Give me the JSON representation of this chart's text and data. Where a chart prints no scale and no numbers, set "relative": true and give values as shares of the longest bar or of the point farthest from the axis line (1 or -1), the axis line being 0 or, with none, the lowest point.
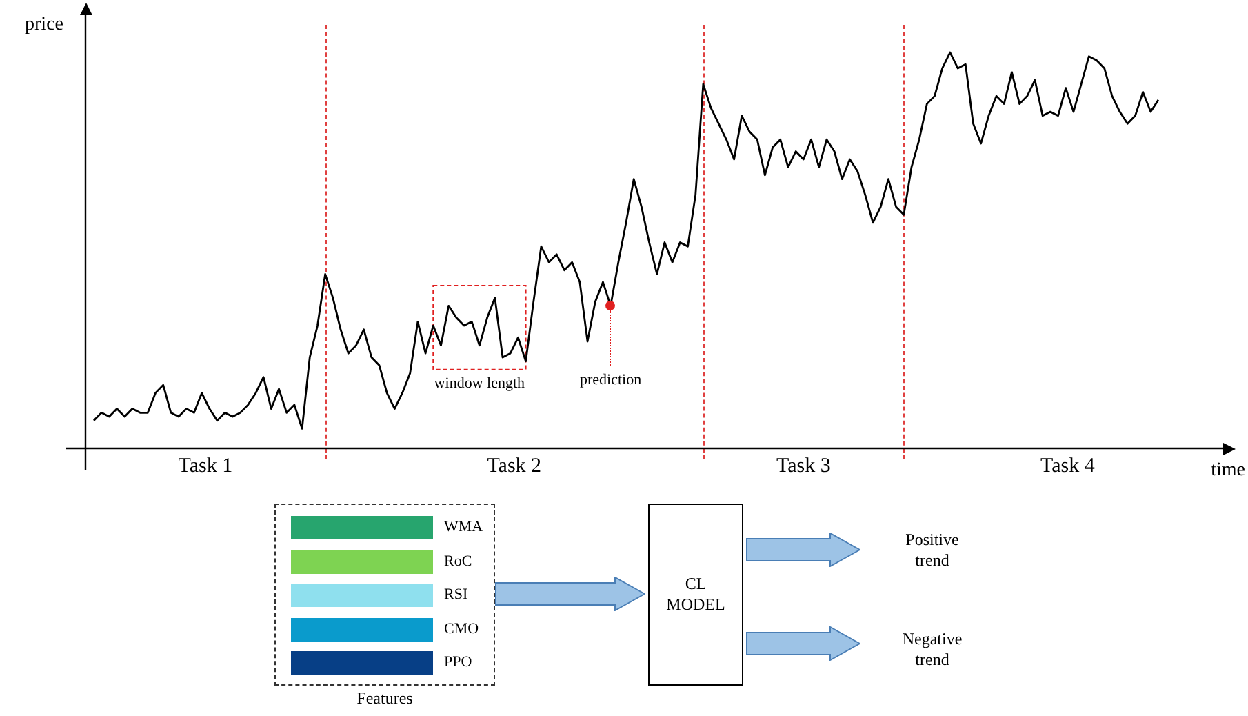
{
  "chart_data": {
    "type": "line",
    "relative": true,
    "xlabel": "time",
    "ylabel": "price",
    "legend": false,
    "marker": "none",
    "line_style": "solid",
    "categories": [
      null,
      null,
      null,
      null,
      null,
      null,
      null,
      null,
      null,
      null,
      null,
      null,
      null,
      null,
      null,
      null,
      null,
      null,
      null,
      null,
      null,
      null,
      null,
      null,
      null,
      null,
      null,
      null,
      null,
      null,
      null,
      null,
      null,
      null,
      null,
      null,
      null,
      null,
      null,
      null,
      null,
      null,
      null,
      null,
      null,
      null,
      null,
      null,
      null,
      null,
      null,
      null,
      null,
      null,
      null,
      null,
      null,
      null,
      null,
      null,
      null,
      null,
      null,
      null,
      null,
      null,
      null,
      null,
      null,
      null,
      null,
      null,
      null,
      null,
      null,
      null,
      null,
      null,
      null,
      null,
      null,
      null,
      null,
      null,
      null,
      null,
      null,
      null,
      null,
      null,
      null,
      null,
      null,
      null,
      null,
      null,
      null,
      null,
      null,
      null,
      null,
      null,
      null,
      null,
      null,
      null,
      null,
      null,
      null,
      null,
      null,
      null,
      null,
      null,
      null,
      null,
      null,
      null,
      null,
      null,
      null,
      null,
      null,
      null,
      null,
      null,
      null,
      null,
      null,
      null,
      null,
      null,
      null,
      null,
      null,
      null,
      null,
      null,
      null
    ],
    "series": [
      {
        "color": "#000000",
        "values": [
          0.07,
          0.09,
          0.08,
          0.1,
          0.08,
          0.1,
          0.09,
          0.09,
          0.14,
          0.16,
          0.09,
          0.08,
          0.1,
          0.09,
          0.14,
          0.1,
          0.07,
          0.09,
          0.08,
          0.09,
          0.11,
          0.14,
          0.18,
          0.1,
          0.15,
          0.09,
          0.11,
          0.05,
          0.23,
          0.31,
          0.44,
          0.38,
          0.3,
          0.24,
          0.26,
          0.3,
          0.23,
          0.21,
          0.14,
          0.1,
          0.14,
          0.19,
          0.32,
          0.24,
          0.31,
          0.26,
          0.36,
          0.33,
          0.31,
          0.32,
          0.26,
          0.33,
          0.38,
          0.23,
          0.24,
          0.28,
          0.22,
          0.37,
          0.51,
          0.47,
          0.49,
          0.45,
          0.47,
          0.42,
          0.27,
          0.37,
          0.42,
          0.36,
          0.47,
          0.57,
          0.68,
          0.61,
          0.52,
          0.44,
          0.52,
          0.47,
          0.52,
          0.51,
          0.64,
          0.92,
          0.86,
          0.82,
          0.78,
          0.73,
          0.84,
          0.8,
          0.78,
          0.69,
          0.76,
          0.78,
          0.71,
          0.75,
          0.73,
          0.78,
          0.71,
          0.78,
          0.75,
          0.68,
          0.73,
          0.7,
          0.64,
          0.57,
          0.61,
          0.68,
          0.61,
          0.59,
          0.71,
          0.78,
          0.87,
          0.89,
          0.96,
          1,
          0.96,
          0.97,
          0.82,
          0.77,
          0.84,
          0.89,
          0.87,
          0.95,
          0.87,
          0.89,
          0.93,
          0.84,
          0.85,
          0.84,
          0.91,
          0.85,
          0.92,
          0.99,
          0.98,
          0.96,
          0.89,
          0.85,
          0.82,
          0.84,
          0.9,
          0.85,
          0.88
        ]
      }
    ],
    "annotations": [
      "Task 1",
      "Task 2",
      "Task 3",
      "Task 4",
      "window length",
      "prediction",
      "WMA",
      "RoC",
      "RSI",
      "CMO",
      "PPO",
      "Features",
      "CL MODEL",
      "Positive trend",
      "Negative trend"
    ]
  }
}
